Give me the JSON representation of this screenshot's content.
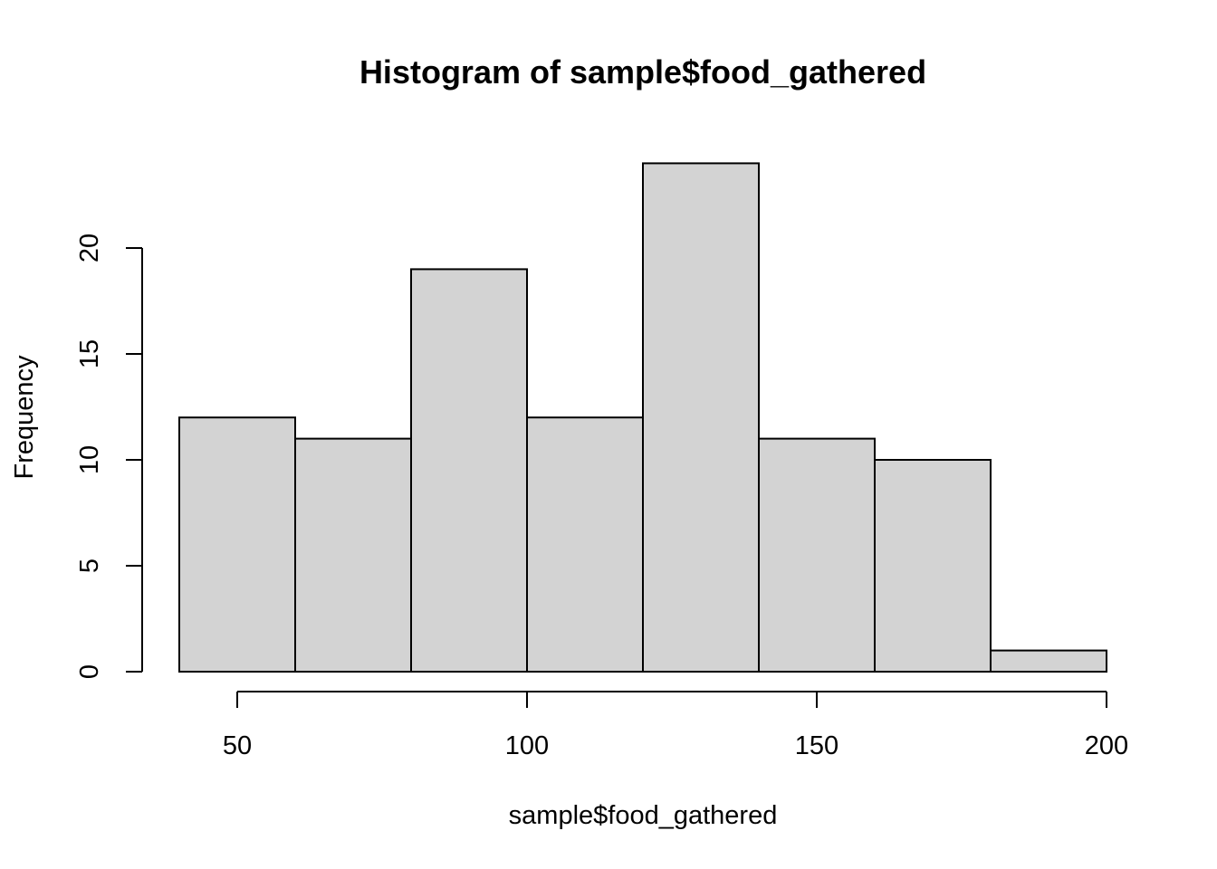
{
  "chart_data": {
    "type": "bar",
    "subtype": "histogram",
    "title": "Histogram of sample$food_gathered",
    "xlabel": "sample$food_gathered",
    "ylabel": "Frequency",
    "bins": [
      {
        "from": 40,
        "to": 60,
        "count": 12
      },
      {
        "from": 60,
        "to": 80,
        "count": 11
      },
      {
        "from": 80,
        "to": 100,
        "count": 19
      },
      {
        "from": 100,
        "to": 120,
        "count": 12
      },
      {
        "from": 120,
        "to": 140,
        "count": 24
      },
      {
        "from": 140,
        "to": 160,
        "count": 11
      },
      {
        "from": 160,
        "to": 180,
        "count": 10
      },
      {
        "from": 180,
        "to": 200,
        "count": 1
      }
    ],
    "xticks": [
      50,
      100,
      150,
      200
    ],
    "yticks": [
      0,
      5,
      10,
      15,
      20
    ],
    "bar_color": "#d3d3d3",
    "grid": false,
    "legend": "none"
  }
}
